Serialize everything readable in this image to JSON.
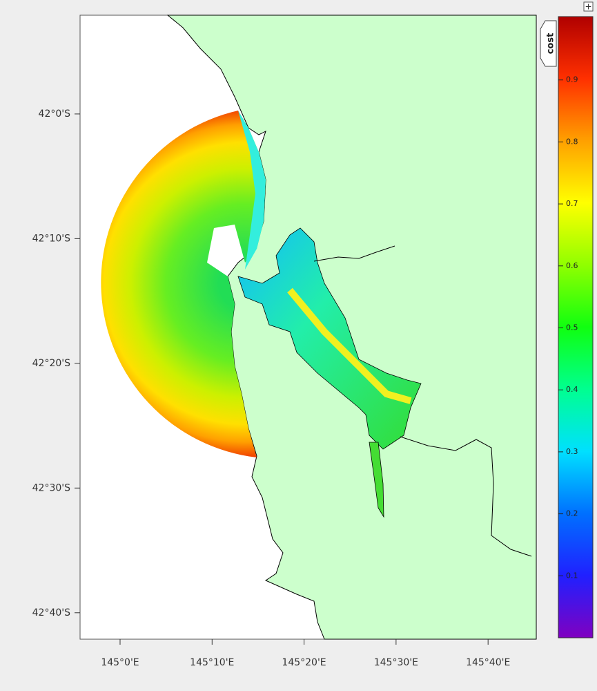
{
  "map": {
    "button": "+",
    "lon_range": [
      144.9275,
      145.754
    ],
    "lat_range": [
      -41.868,
      -42.702
    ],
    "lon_ticks": [
      {
        "value": 145,
        "label": "145°0'E"
      },
      {
        "value": 145.1667,
        "label": "145°10'E"
      },
      {
        "value": 145.3333,
        "label": "145°20'E"
      },
      {
        "value": 145.5,
        "label": "145°30'E"
      },
      {
        "value": 145.6667,
        "label": "145°40'E"
      }
    ],
    "lat_ticks": [
      {
        "value": -42,
        "label": "42°0'S"
      },
      {
        "value": -42.1667,
        "label": "42°10'S"
      },
      {
        "value": -42.3333,
        "label": "42°20'S"
      },
      {
        "value": -42.5,
        "label": "42°30'S"
      },
      {
        "value": -42.6667,
        "label": "42°40'S"
      }
    ],
    "colorbar": {
      "label": "cost",
      "range": [
        0,
        1
      ],
      "ticks": [
        0.1,
        0.2,
        0.3,
        0.4,
        0.5,
        0.6,
        0.7,
        0.8,
        0.9
      ]
    }
  }
}
